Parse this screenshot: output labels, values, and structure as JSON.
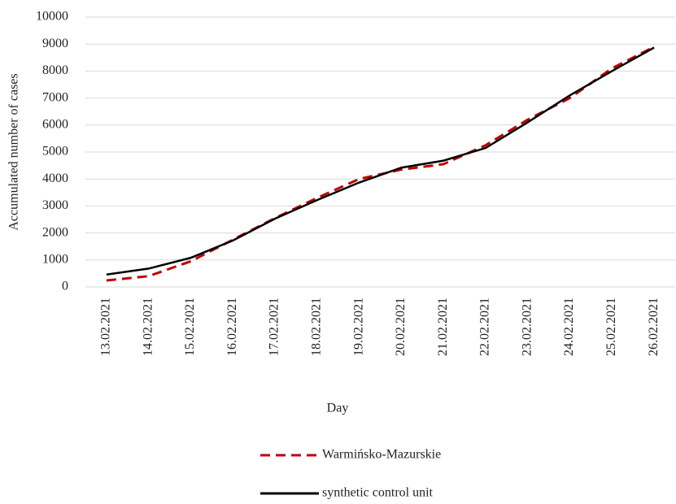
{
  "chart_data": {
    "type": "line",
    "y_label": "Accumulated number of cases",
    "x_label": "Day",
    "categories": [
      "13.02.2021",
      "14.02.2021",
      "15.02.2021",
      "16.02.2021",
      "17.02.2021",
      "18.02.2021",
      "19.02.2021",
      "20.02.2021",
      "21.02.2021",
      "22.02.2021",
      "23.02.2021",
      "24.02.2021",
      "25.02.2021",
      "26.02.2021"
    ],
    "series": [
      {
        "name": "Warmińsko-Mazurskie",
        "color": "#c00000",
        "dash": true,
        "values": [
          240,
          400,
          950,
          1750,
          2550,
          3300,
          4000,
          4350,
          4550,
          5250,
          6200,
          7000,
          8100,
          8900
        ]
      },
      {
        "name": "synthetic control unit",
        "color": "#000000",
        "dash": false,
        "values": [
          460,
          680,
          1080,
          1720,
          2530,
          3220,
          3870,
          4420,
          4680,
          5150,
          6100,
          7100,
          8000,
          8870
        ]
      }
    ],
    "ylim": [
      0,
      10000
    ],
    "yticks": [
      0,
      1000,
      2000,
      3000,
      4000,
      5000,
      6000,
      7000,
      8000,
      9000,
      10000
    ],
    "grid": true
  }
}
